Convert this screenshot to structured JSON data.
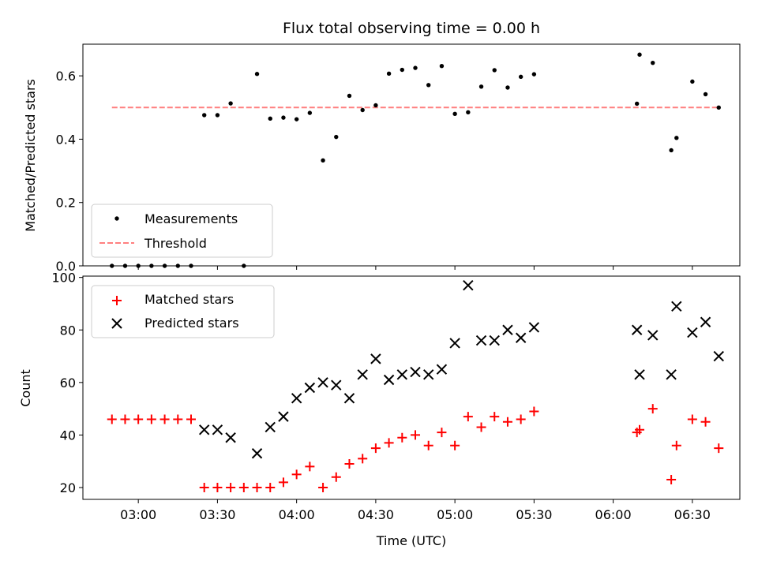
{
  "chart_data": [
    {
      "type": "scatter",
      "title": "Flux total observing time = 0.00 h",
      "ylabel": "Matched/Predicted stars",
      "ylim": [
        0,
        0.7
      ],
      "yticks": [
        0.0,
        0.2,
        0.4,
        0.6
      ],
      "ytick_labels": [
        "0.0",
        "0.2",
        "0.4",
        "0.6"
      ],
      "xlim": [
        "02:39",
        "06:48"
      ],
      "legend_position": "lower-left",
      "series": [
        {
          "name": "Measurements",
          "marker": "dot",
          "color": "#000000",
          "x": [
            "02:50",
            "02:55",
            "03:00",
            "03:05",
            "03:10",
            "03:15",
            "03:20",
            "03:25",
            "03:30",
            "03:35",
            "03:40",
            "03:45",
            "03:50",
            "03:55",
            "04:00",
            "04:05",
            "04:10",
            "04:15",
            "04:20",
            "04:25",
            "04:30",
            "04:35",
            "04:40",
            "04:45",
            "04:50",
            "04:55",
            "05:00",
            "05:05",
            "05:10",
            "05:15",
            "05:20",
            "05:25",
            "05:30",
            "06:09",
            "06:10",
            "06:15",
            "06:22",
            "06:24",
            "06:30",
            "06:35",
            "06:40"
          ],
          "y": [
            0.0,
            0.0,
            0.0,
            0.0,
            0.0,
            0.0,
            0.0,
            0.476,
            0.476,
            0.513,
            0.0,
            0.606,
            0.465,
            0.468,
            0.463,
            0.483,
            0.333,
            0.407,
            0.537,
            0.492,
            0.507,
            0.607,
            0.619,
            0.625,
            0.571,
            0.631,
            0.48,
            0.485,
            0.566,
            0.618,
            0.563,
            0.597,
            0.605,
            0.512,
            0.667,
            0.641,
            0.365,
            0.404,
            0.582,
            0.542,
            0.5
          ]
        },
        {
          "name": "Threshold",
          "style": "dashed",
          "color": "#ff7f7f",
          "x": [
            "02:50",
            "06:40"
          ],
          "y": [
            0.5,
            0.5
          ]
        }
      ]
    },
    {
      "type": "scatter",
      "xlabel": "Time (UTC)",
      "ylabel": "Count",
      "ylim": [
        15.5,
        100.5
      ],
      "yticks": [
        20,
        40,
        60,
        80,
        100
      ],
      "ytick_labels": [
        "20",
        "40",
        "60",
        "80",
        "100"
      ],
      "xlim": [
        "02:39",
        "06:48"
      ],
      "xticks": [
        "03:00",
        "03:30",
        "04:00",
        "04:30",
        "05:00",
        "05:30",
        "06:00",
        "06:30"
      ],
      "xtick_labels": [
        "03:00",
        "03:30",
        "04:00",
        "04:30",
        "05:00",
        "05:30",
        "06:00",
        "06:30"
      ],
      "legend_position": "upper-left",
      "series": [
        {
          "name": "Matched stars",
          "marker": "plus",
          "color": "#ff0000",
          "x": [
            "02:50",
            "02:55",
            "03:00",
            "03:05",
            "03:10",
            "03:15",
            "03:20",
            "03:25",
            "03:30",
            "03:35",
            "03:40",
            "03:45",
            "03:50",
            "03:55",
            "04:00",
            "04:05",
            "04:10",
            "04:15",
            "04:20",
            "04:25",
            "04:30",
            "04:35",
            "04:40",
            "04:45",
            "04:50",
            "04:55",
            "05:00",
            "05:05",
            "05:10",
            "05:15",
            "05:20",
            "05:25",
            "05:30",
            "06:09",
            "06:10",
            "06:15",
            "06:22",
            "06:24",
            "06:30",
            "06:35",
            "06:40"
          ],
          "y": [
            46,
            46,
            46,
            46,
            46,
            46,
            46,
            20,
            20,
            20,
            20,
            20,
            20,
            22,
            25,
            28,
            20,
            24,
            29,
            31,
            35,
            37,
            39,
            40,
            36,
            41,
            36,
            47,
            43,
            47,
            45,
            46,
            49,
            41,
            42,
            50,
            23,
            36,
            46,
            45,
            35
          ]
        },
        {
          "name": "Predicted stars",
          "marker": "x",
          "color": "#000000",
          "x": [
            "03:25",
            "03:30",
            "03:35",
            "03:45",
            "03:50",
            "03:55",
            "04:00",
            "04:05",
            "04:10",
            "04:15",
            "04:20",
            "04:25",
            "04:30",
            "04:35",
            "04:40",
            "04:45",
            "04:50",
            "04:55",
            "05:00",
            "05:05",
            "05:10",
            "05:15",
            "05:20",
            "05:25",
            "05:30",
            "06:09",
            "06:10",
            "06:15",
            "06:22",
            "06:24",
            "06:30",
            "06:35",
            "06:40"
          ],
          "y": [
            42,
            42,
            39,
            33,
            43,
            47,
            54,
            58,
            60,
            59,
            54,
            63,
            69,
            61,
            63,
            64,
            63,
            65,
            75,
            97,
            76,
            76,
            80,
            77,
            81,
            80,
            63,
            78,
            63,
            89,
            79,
            83,
            70
          ]
        }
      ]
    }
  ]
}
